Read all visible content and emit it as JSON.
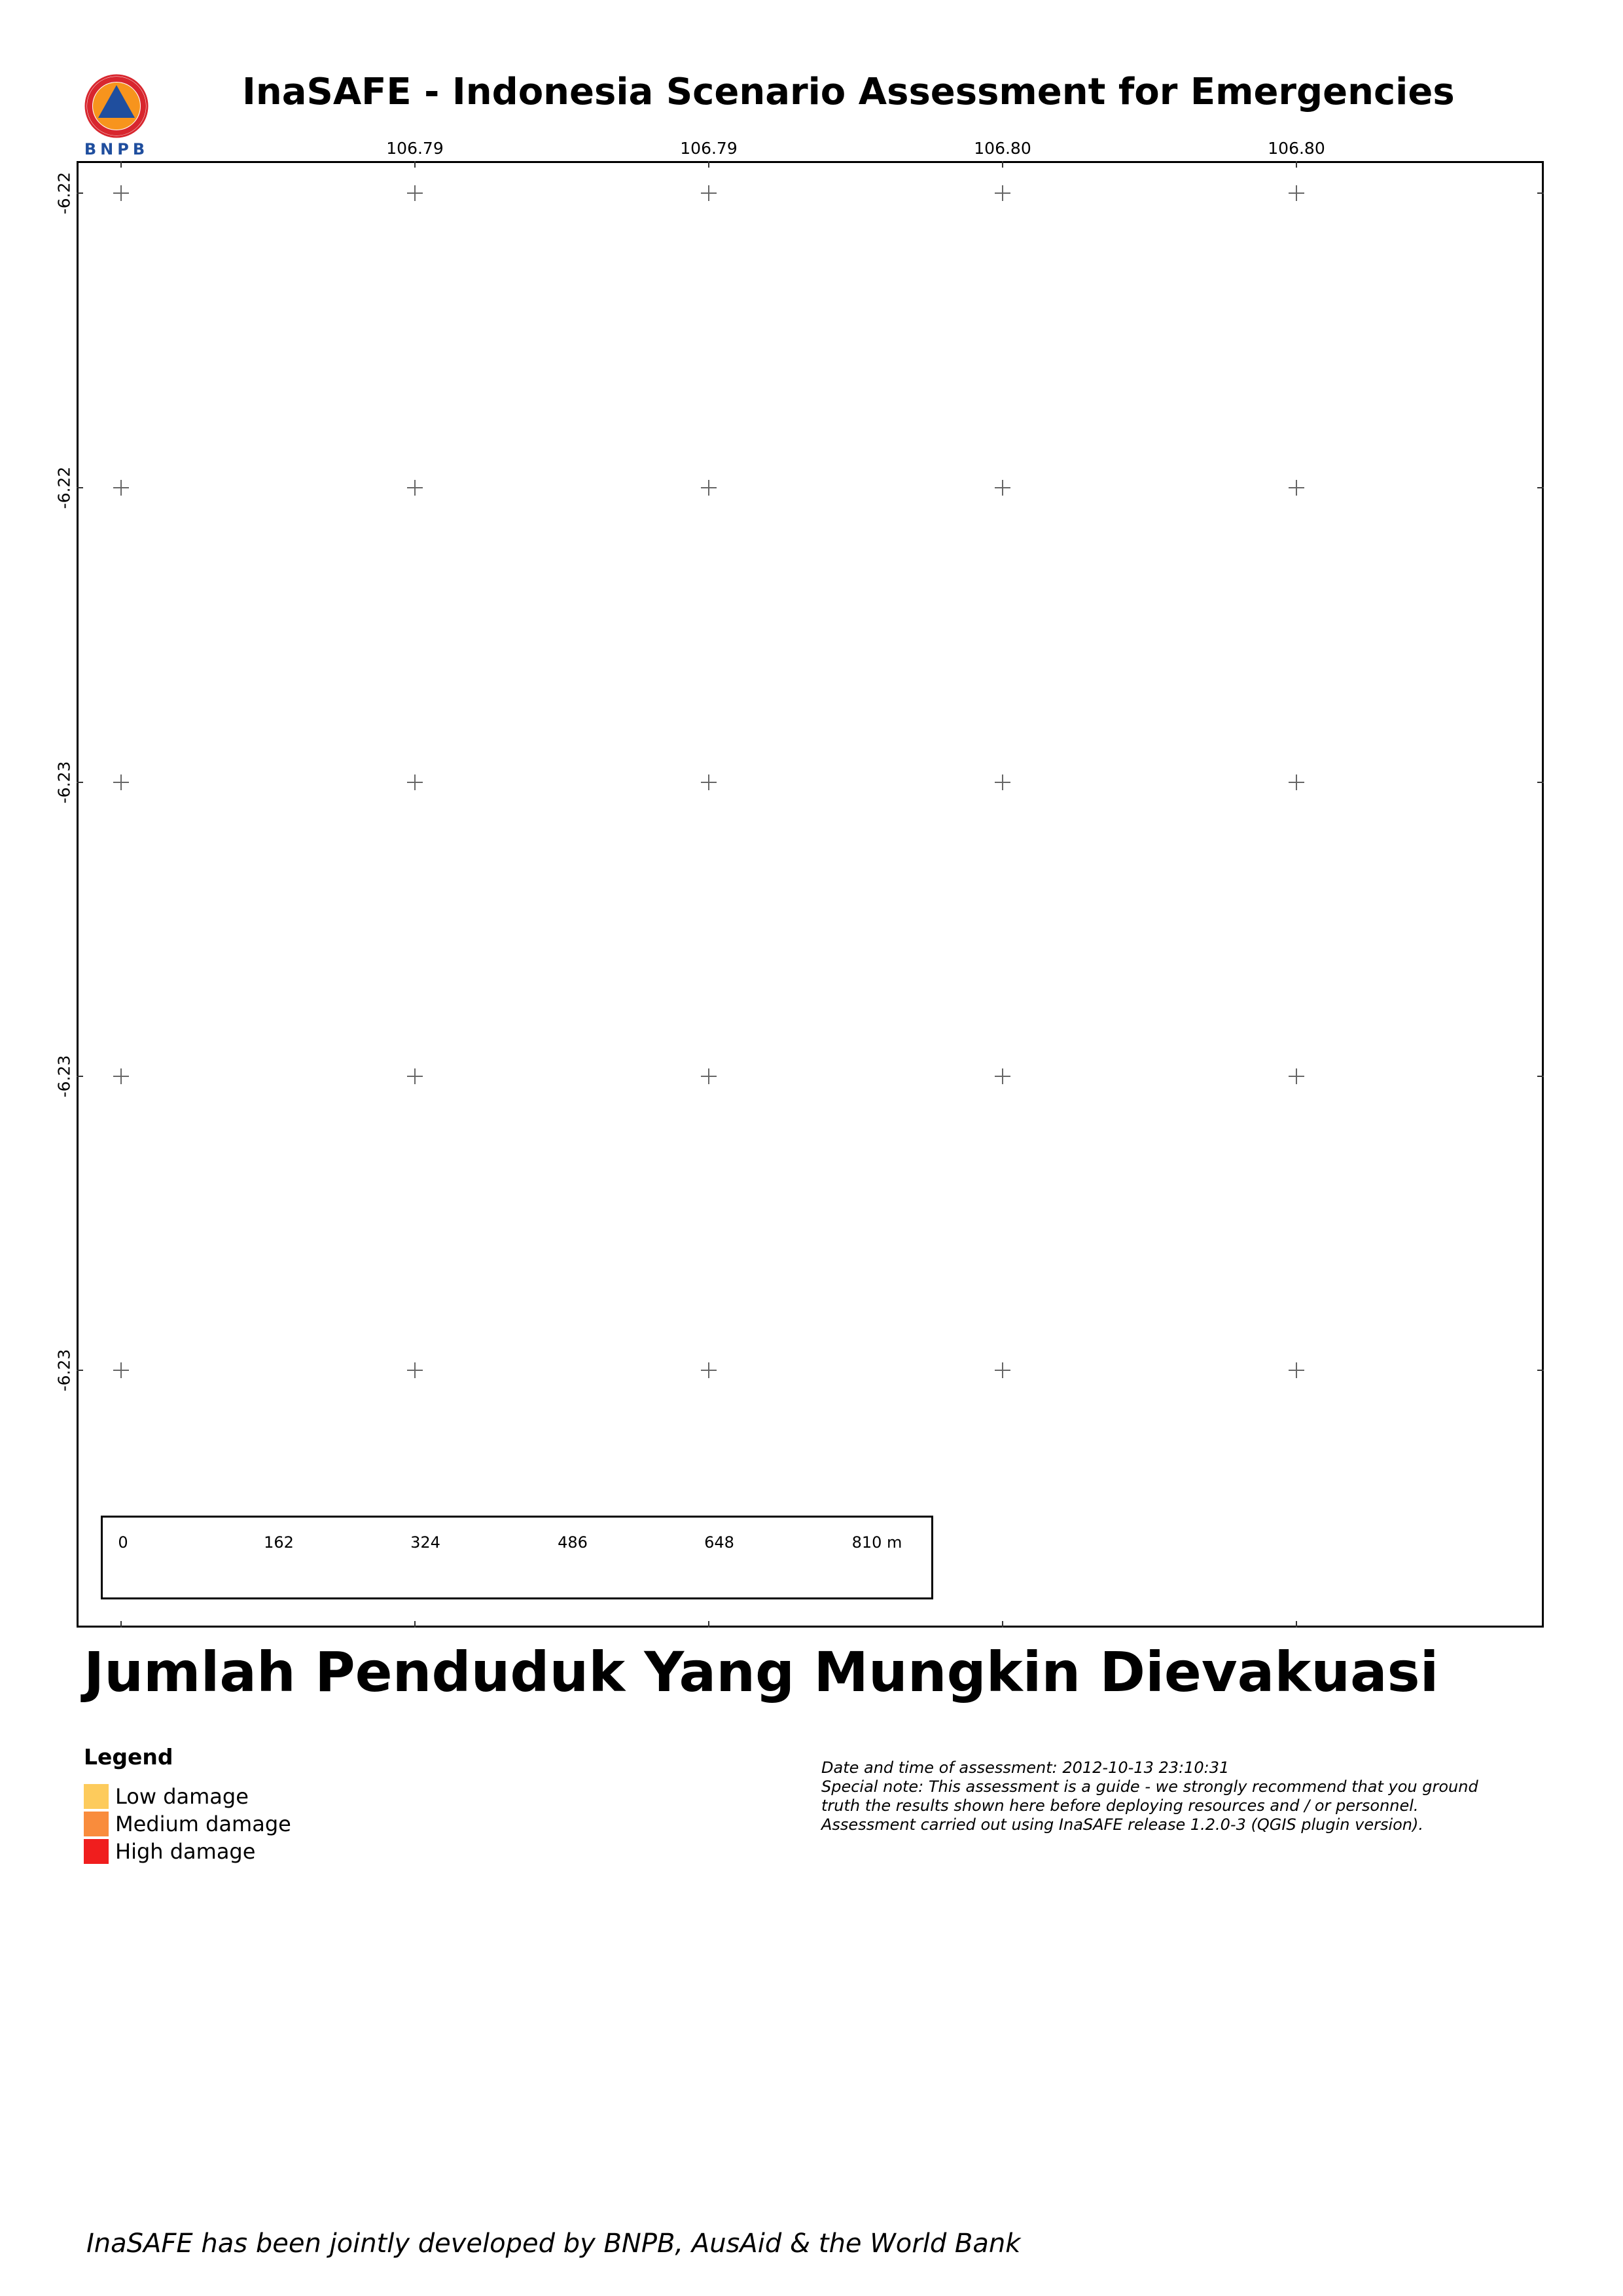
{
  "header": {
    "logo_text": "BNPB",
    "title": "InaSAFE - Indonesia Scenario Assessment for Emergencies"
  },
  "map": {
    "longitude_labels": [
      "106.79",
      "106.79",
      "106.80",
      "106.80"
    ],
    "latitude_labels": [
      "-6.22",
      "-6.22",
      "-6.23",
      "-6.23",
      "-6.23"
    ],
    "scale_bar": {
      "labels": [
        "0",
        "162",
        "324",
        "486",
        "648",
        "810 m"
      ]
    }
  },
  "map_title": "Jumlah Penduduk Yang Mungkin Dievakuasi",
  "legend": {
    "title": "Legend",
    "items": [
      {
        "label": "Low damage",
        "color": "#fdcb5c"
      },
      {
        "label": "Medium damage",
        "color": "#f98c3c"
      },
      {
        "label": "High damage",
        "color": "#f01e1e"
      }
    ]
  },
  "notes": {
    "line1": "Date and time of assessment: 2012-10-13 23:10:31",
    "line2": "Special note: This assessment is a guide - we strongly recommend that you ground",
    "line3": "truth the results shown here before deploying resources and / or personnel.",
    "line4": "Assessment carried out using InaSAFE release 1.2.0-3 (QGIS plugin version)."
  },
  "footer": "InaSAFE has been jointly developed by BNPB, AusAid & the World Bank"
}
